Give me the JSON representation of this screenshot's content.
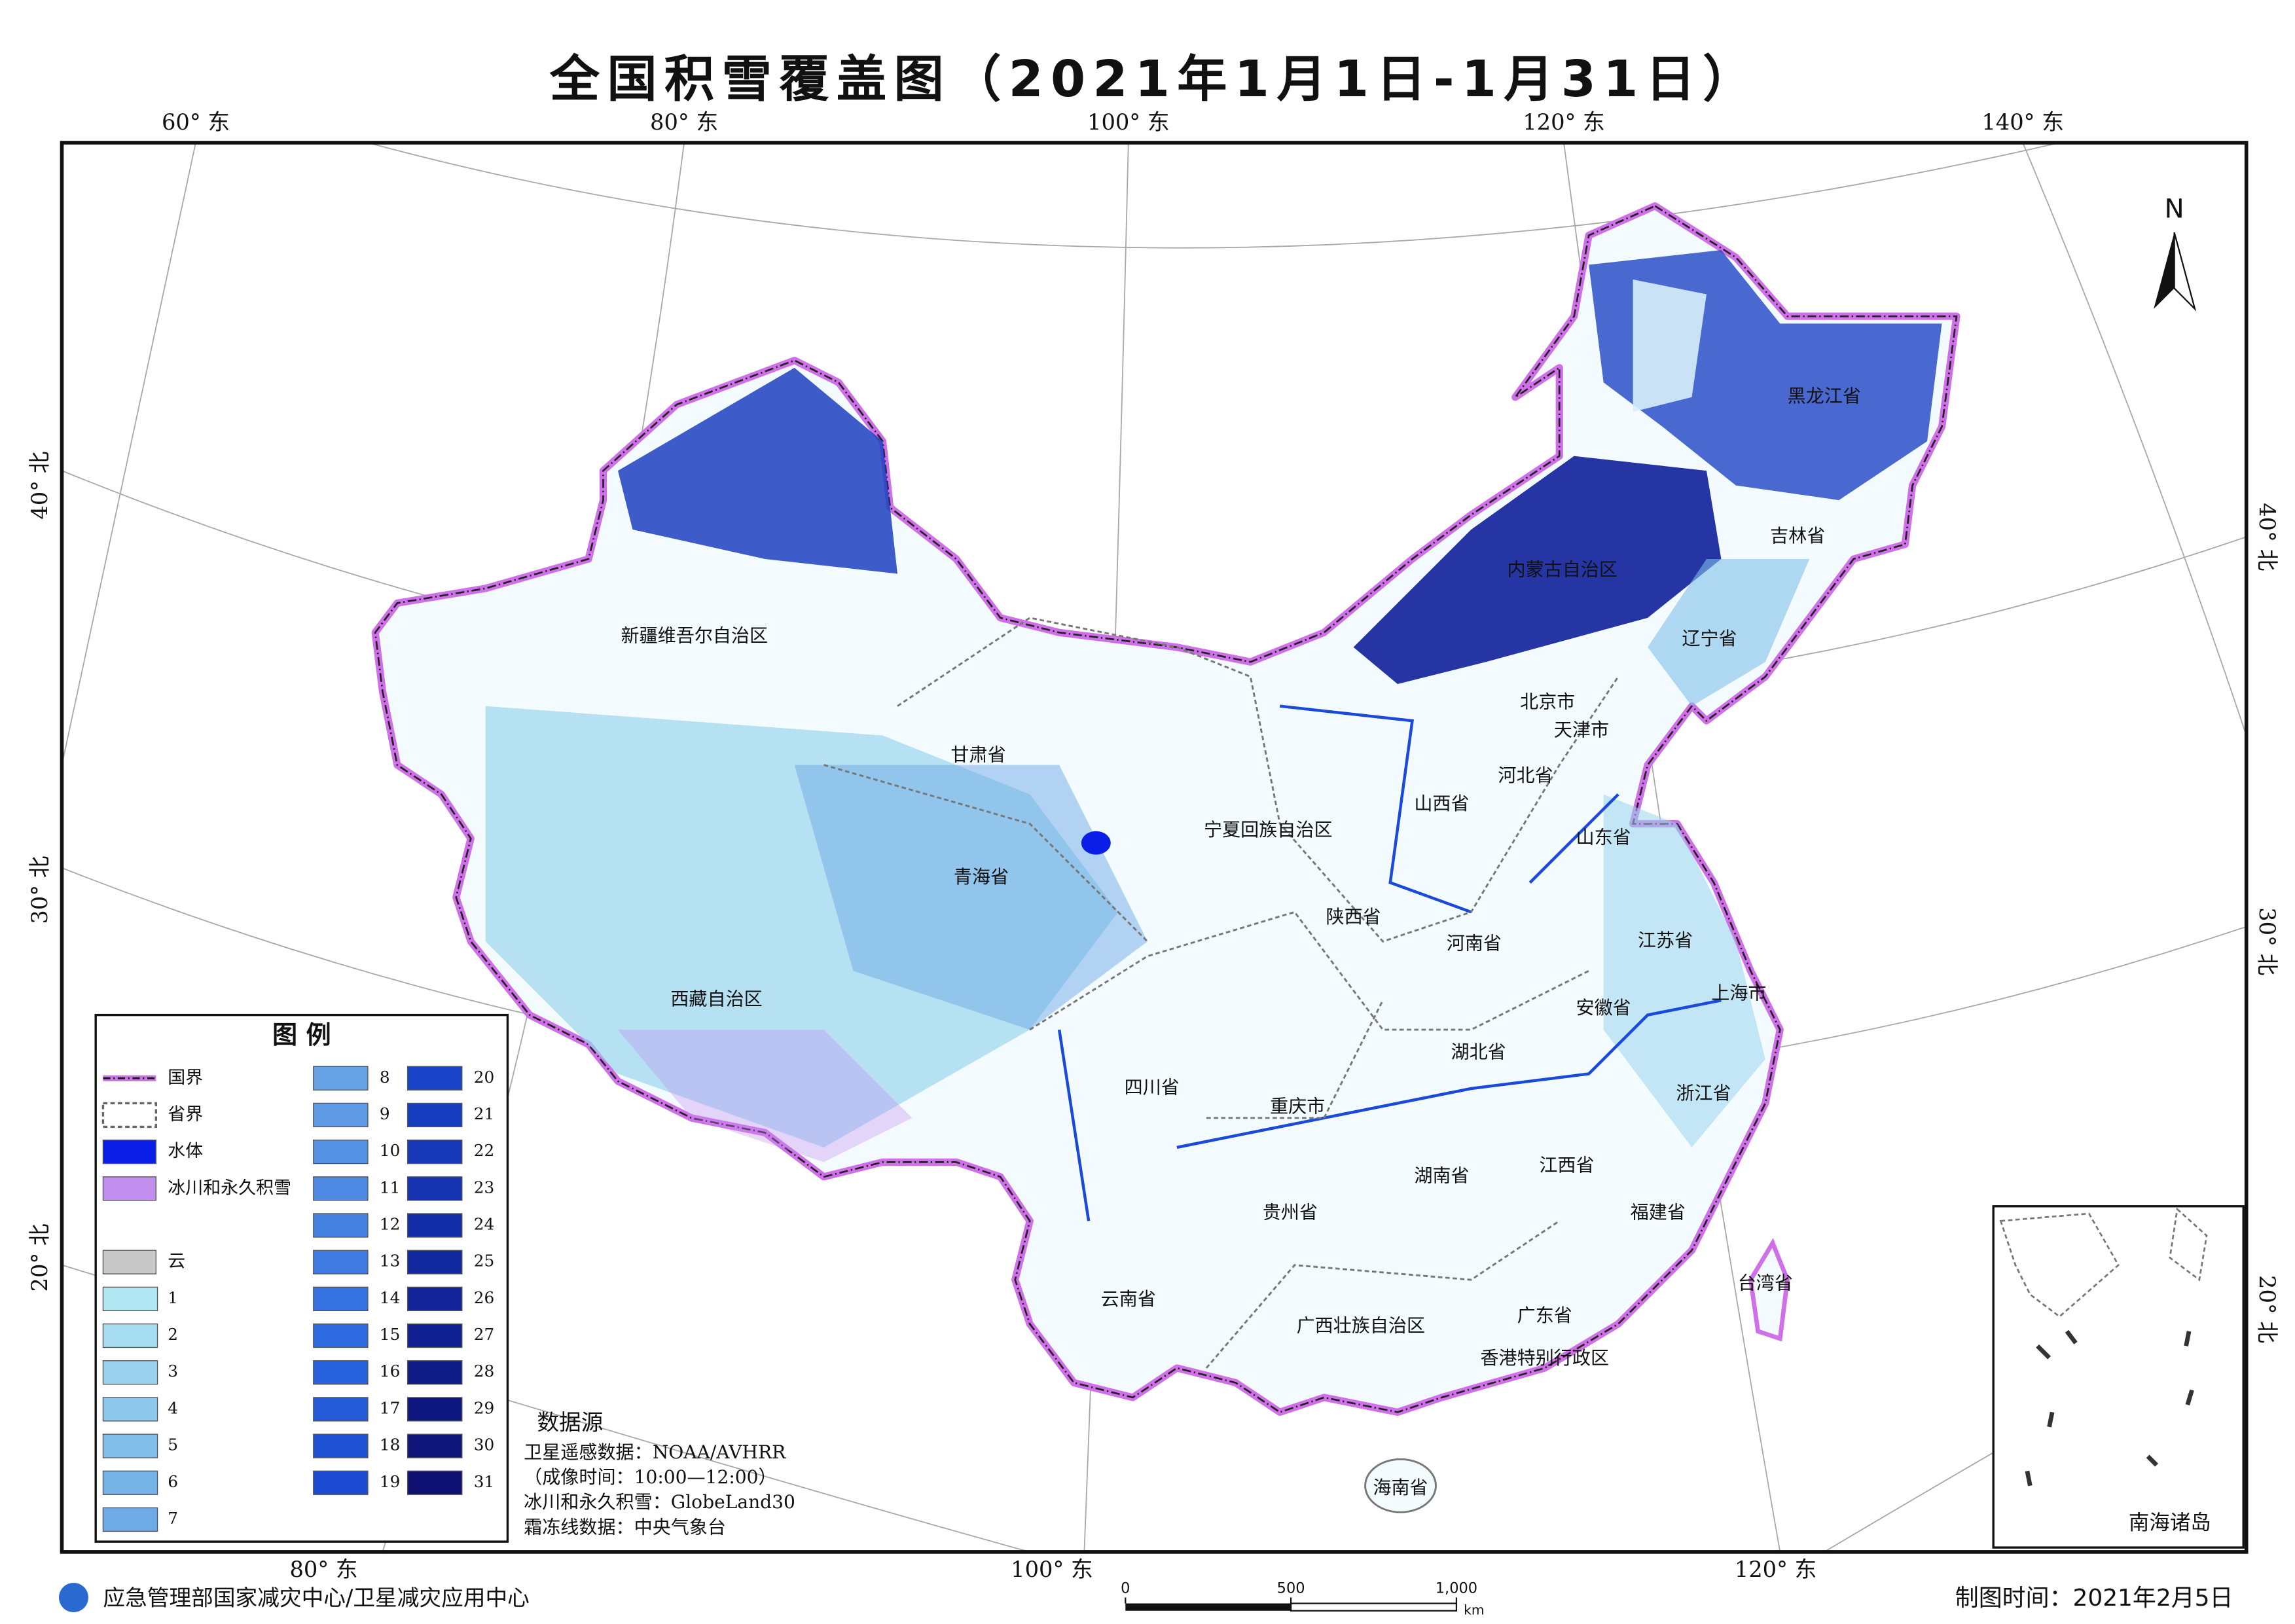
{
  "header": {
    "title": "全国积雪覆盖图（2021年1月1日-1月31日）"
  },
  "graticule": {
    "top": [
      "60° 东",
      "80° 东",
      "100° 东",
      "120° 东",
      "140° 东"
    ],
    "bottom": [
      "80° 东",
      "100° 东",
      "120° 东"
    ],
    "left": [
      "40° 北",
      "30° 北",
      "20° 北"
    ],
    "right": [
      "40° 北",
      "30° 北",
      "20° 北"
    ]
  },
  "north": "N",
  "provinces": [
    "黑龙江省",
    "吉林省",
    "辽宁省",
    "内蒙古自治区",
    "北京市",
    "天津市",
    "河北省",
    "山西省",
    "山东省",
    "宁夏回族自治区",
    "甘肃省",
    "新疆维吾尔自治区",
    "青海省",
    "陕西省",
    "河南省",
    "江苏省",
    "安徽省",
    "上海市",
    "西藏自治区",
    "湖北省",
    "四川省",
    "重庆市",
    "浙江省",
    "湖南省",
    "江西省",
    "贵州省",
    "福建省",
    "云南省",
    "台湾省",
    "广西壮族自治区",
    "广东省",
    "香港特别行政区",
    "海南省"
  ],
  "legend": {
    "title": "图  例",
    "items": [
      {
        "label": "国界"
      },
      {
        "label": "省界"
      },
      {
        "label": "水体",
        "color": "#0a1ee8"
      },
      {
        "label": "冰川和永久积雪",
        "color": "#c390f0"
      },
      {
        "label": "云",
        "color": "#c8c8c8"
      }
    ],
    "classes": [
      {
        "label": 1,
        "color": "#b2e6f2"
      },
      {
        "label": 2,
        "color": "#a6dcf0"
      },
      {
        "label": 3,
        "color": "#9ad2ee"
      },
      {
        "label": 4,
        "color": "#8ec8ec"
      },
      {
        "label": 5,
        "color": "#82beea"
      },
      {
        "label": 6,
        "color": "#76b4e8"
      },
      {
        "label": 7,
        "color": "#6eaae6"
      },
      {
        "label": 8,
        "color": "#66a2e4"
      },
      {
        "label": 9,
        "color": "#5e9ae4"
      },
      {
        "label": 10,
        "color": "#5692e4"
      },
      {
        "label": 11,
        "color": "#4e8ae4"
      },
      {
        "label": 12,
        "color": "#4682e2"
      },
      {
        "label": 13,
        "color": "#3e7ae2"
      },
      {
        "label": 14,
        "color": "#3672e2"
      },
      {
        "label": 15,
        "color": "#2e6ae0"
      },
      {
        "label": 16,
        "color": "#2862dc"
      },
      {
        "label": 17,
        "color": "#245ad8"
      },
      {
        "label": 18,
        "color": "#2052d4"
      },
      {
        "label": 19,
        "color": "#1c4ad0"
      },
      {
        "label": 20,
        "color": "#1a44c8"
      },
      {
        "label": 21,
        "color": "#183ec0"
      },
      {
        "label": 22,
        "color": "#1638b8"
      },
      {
        "label": 23,
        "color": "#1532b0"
      },
      {
        "label": 24,
        "color": "#142ea8"
      },
      {
        "label": 25,
        "color": "#1329a0"
      },
      {
        "label": 26,
        "color": "#122498"
      },
      {
        "label": 27,
        "color": "#112090"
      },
      {
        "label": 28,
        "color": "#101c88"
      },
      {
        "label": 29,
        "color": "#0f1880"
      },
      {
        "label": 30,
        "color": "#0e1478"
      },
      {
        "label": 31,
        "color": "#0d1070"
      }
    ]
  },
  "data_source": {
    "title": "数据源",
    "lines": [
      "卫星遥感数据：NOAA/AVHRR",
      "（成像时间：10:00—12:00）",
      "冰川和永久积雪：GlobeLand30",
      "霜冻线数据：中央气象台"
    ]
  },
  "inset": {
    "label": "南海诸岛"
  },
  "scale_bar": {
    "ticks": [
      {
        "value": 0,
        "label": "0"
      },
      {
        "value": 500,
        "label": "500"
      },
      {
        "value": 1000,
        "label": "1,000"
      }
    ],
    "unit": "km"
  },
  "footer": {
    "org": "应急管理部国家减灾中心/卫星减灾应用中心",
    "date": "制图时间：2021年2月5日"
  }
}
